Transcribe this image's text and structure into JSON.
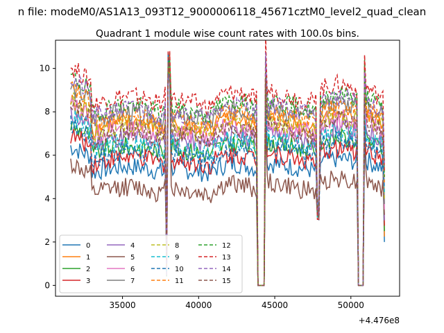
{
  "chart_data": {
    "type": "line",
    "suptitle": "n file: modeM0/AS1A13_093T12_9000006118_45671cztM0_level2_quad_clean",
    "title": "Quadrant 1 module wise count rates with 100.0s bins.",
    "xlabel": "",
    "ylabel": "",
    "x_offset_label": "+4.476e8",
    "xlim": [
      30600,
      53200
    ],
    "ylim": [
      -0.5,
      11.3
    ],
    "xticks": [
      35000,
      40000,
      45000,
      50000
    ],
    "xtick_labels": [
      "35000",
      "40000",
      "45000",
      "50000"
    ],
    "yticks": [
      0,
      2,
      4,
      6,
      8,
      10
    ],
    "ytick_labels": [
      "0",
      "2",
      "4",
      "6",
      "8",
      "10"
    ],
    "grid": false,
    "legend_position": "lower-left",
    "legend_columns": 4,
    "x_start": 31600,
    "x_end": 52200,
    "bin_width": 100,
    "gaps": [
      {
        "x_from": 37850,
        "x_to": 38050,
        "shape": "spike"
      },
      {
        "x_from": 43900,
        "x_to": 44300,
        "shape": "flat-zero"
      },
      {
        "x_from": 47800,
        "x_to": 47900,
        "shape": "dip"
      },
      {
        "x_from": 50500,
        "x_to": 50800,
        "shape": "flat-zero"
      }
    ],
    "series": [
      {
        "name": "0",
        "color": "#1f77b4",
        "dash": "solid",
        "base": 5.2
      },
      {
        "name": "1",
        "color": "#ff7f0e",
        "dash": "solid",
        "base": 7.2
      },
      {
        "name": "2",
        "color": "#2ca02c",
        "dash": "solid",
        "base": 6.1
      },
      {
        "name": "3",
        "color": "#d62728",
        "dash": "solid",
        "base": 5.6
      },
      {
        "name": "4",
        "color": "#9467bd",
        "dash": "solid",
        "base": 6.5
      },
      {
        "name": "5",
        "color": "#8c564b",
        "dash": "solid",
        "base": 4.2
      },
      {
        "name": "6",
        "color": "#e377c2",
        "dash": "solid",
        "base": 6.9
      },
      {
        "name": "7",
        "color": "#7f7f7f",
        "dash": "solid",
        "base": 7.6
      },
      {
        "name": "8",
        "color": "#bcbd22",
        "dash": "dashed",
        "base": 7.0
      },
      {
        "name": "9",
        "color": "#17becf",
        "dash": "dashed",
        "base": 6.2
      },
      {
        "name": "10",
        "color": "#1f77b4",
        "dash": "dashed",
        "base": 5.8
      },
      {
        "name": "11",
        "color": "#ff7f0e",
        "dash": "dashed",
        "base": 7.4
      },
      {
        "name": "12",
        "color": "#2ca02c",
        "dash": "dashed",
        "base": 7.9
      },
      {
        "name": "13",
        "color": "#d62728",
        "dash": "dashed",
        "base": 8.3
      },
      {
        "name": "14",
        "color": "#9467bd",
        "dash": "dashed",
        "base": 7.7
      },
      {
        "name": "15",
        "color": "#8c564b",
        "dash": "dashed",
        "base": 6.7
      }
    ]
  }
}
